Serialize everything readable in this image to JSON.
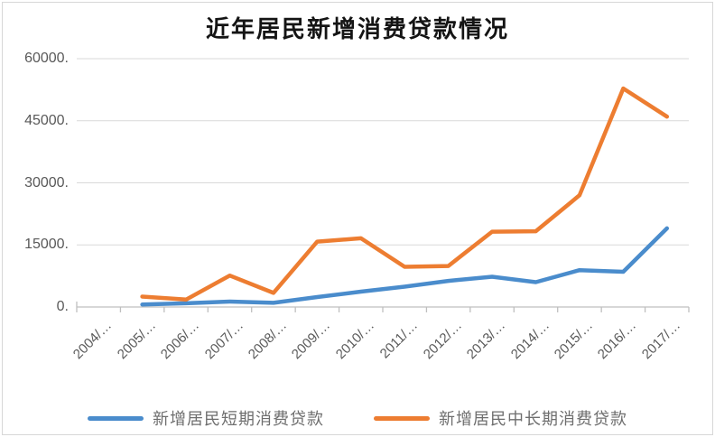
{
  "chart_data": {
    "type": "line",
    "title": "近年居民新增消费贷款情况",
    "xlabel": "",
    "ylabel": "",
    "ylim": [
      0,
      60000
    ],
    "grid": true,
    "legend_position": "bottom",
    "y_tick_labels": [
      "0.",
      "15000.",
      "30000.",
      "45000.",
      "60000."
    ],
    "y_tick_values": [
      0,
      15000,
      30000,
      45000,
      60000
    ],
    "categories": [
      "2004/…",
      "2005/…",
      "2006/…",
      "2007/…",
      "2008/…",
      "2009/…",
      "2010/…",
      "2011/…",
      "2012/…",
      "2013/…",
      "2014/…",
      "2015/…",
      "2016/…",
      "2017/…"
    ],
    "series": [
      {
        "name": "新增居民短期消费贷款",
        "color": "#4a8ccc",
        "values": [
          null,
          600,
          900,
          1300,
          1000,
          2400,
          3700,
          4900,
          6300,
          7300,
          6000,
          8900,
          8500,
          19000
        ]
      },
      {
        "name": "新增居民中长期消费贷款",
        "color": "#ed7d31",
        "values": [
          null,
          2500,
          1800,
          7600,
          3400,
          15800,
          16600,
          9700,
          9900,
          18200,
          18300,
          27000,
          52800,
          46000
        ]
      }
    ],
    "colors": {
      "gridline": "#d9d9d9",
      "axis_line": "#bfbfbf",
      "tick": "#bfbfbf",
      "axis_text": "#595959",
      "title_text": "#141414",
      "legend_text": "#6e6e6e"
    }
  }
}
